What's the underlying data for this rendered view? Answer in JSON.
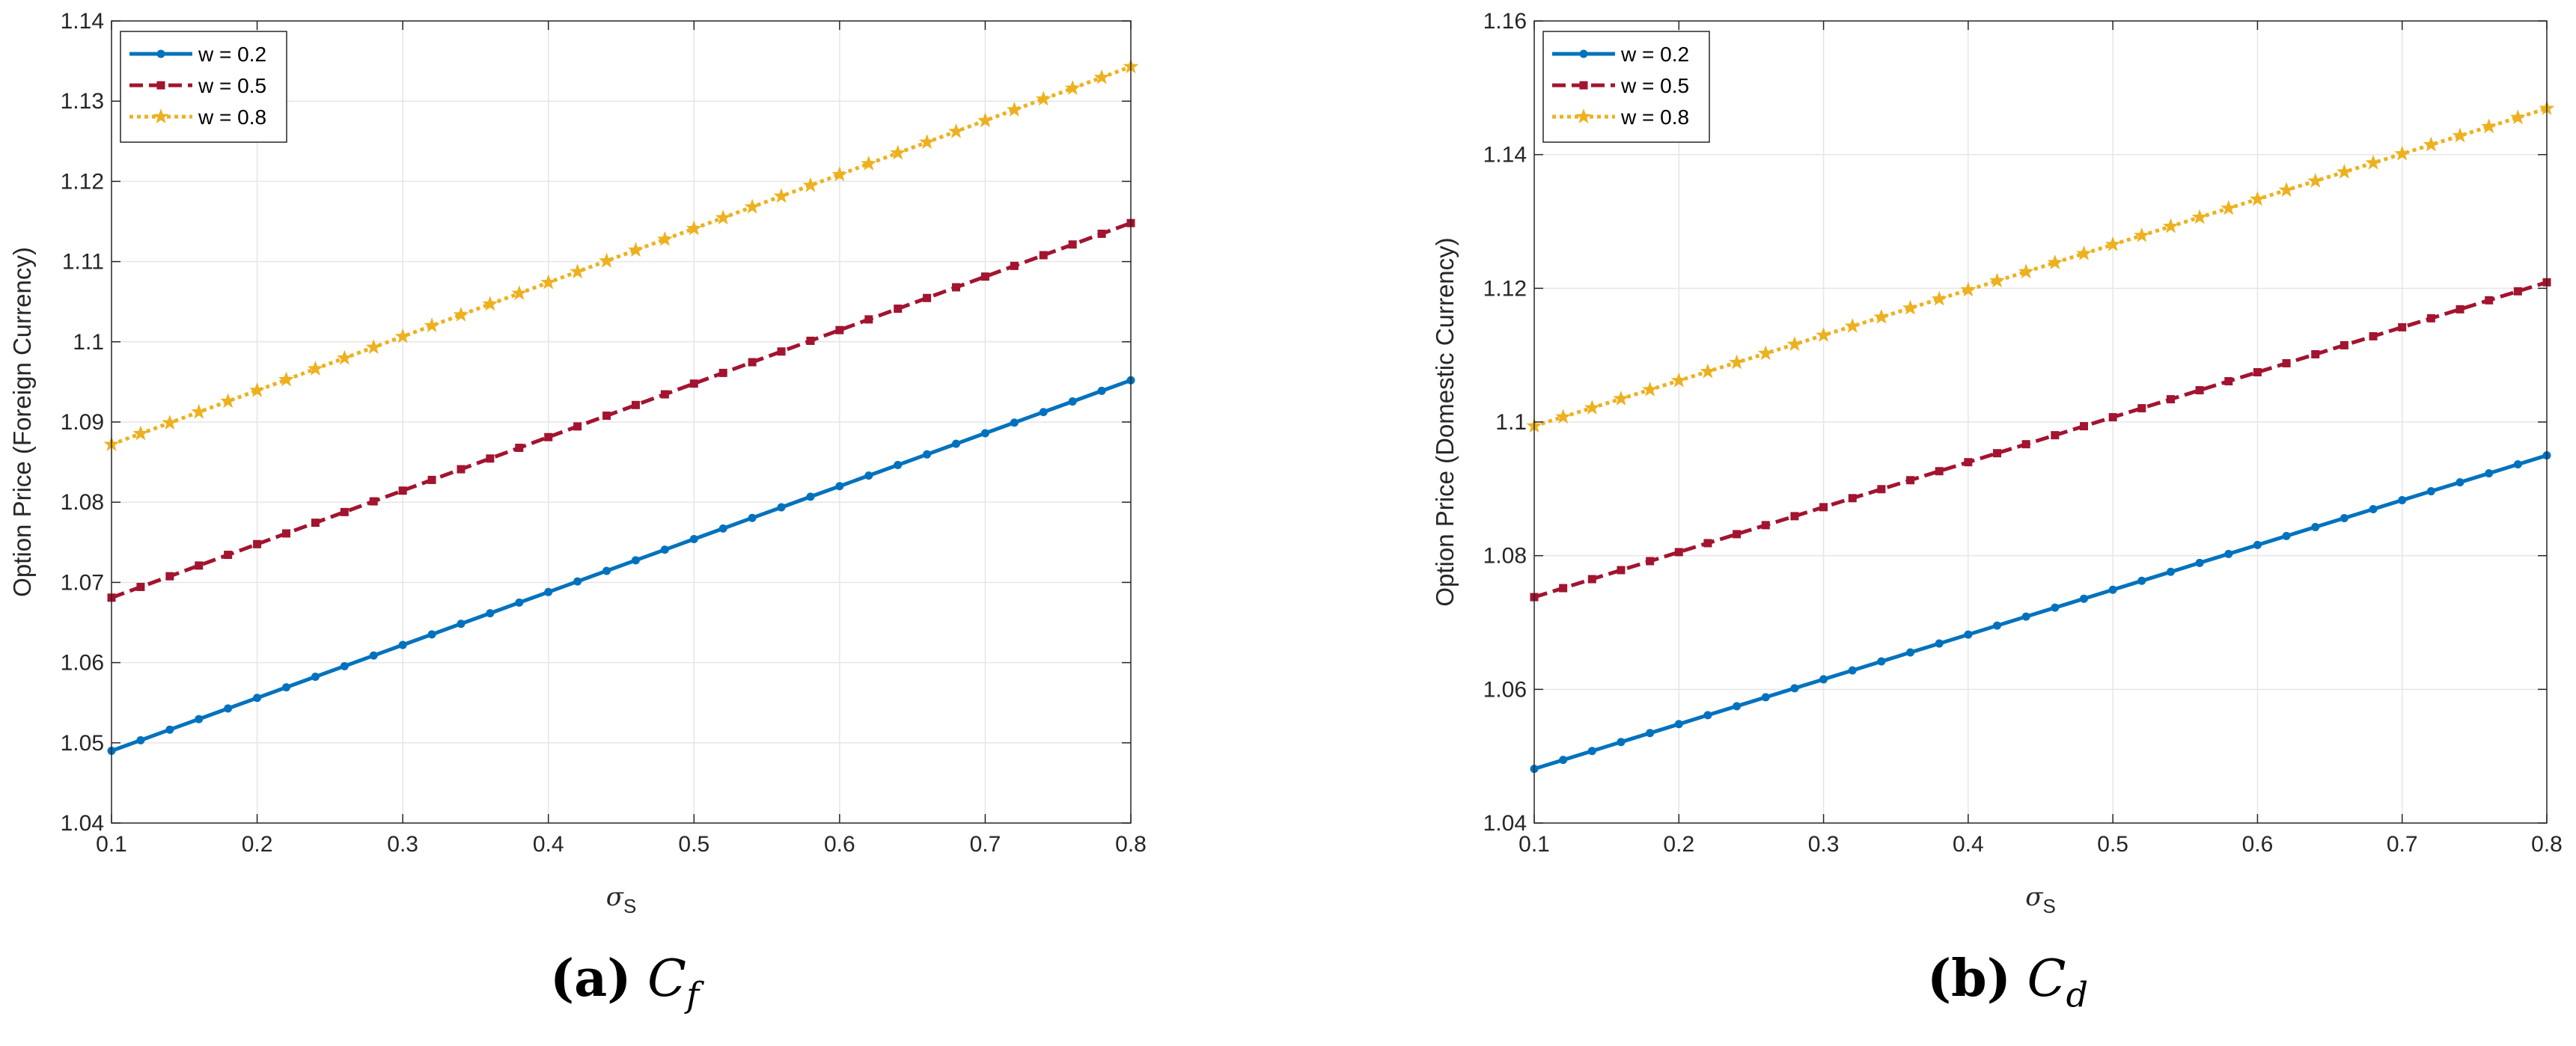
{
  "chart_data": [
    {
      "type": "line",
      "panel_label": "(a)",
      "caption_symbol": "C",
      "caption_subscript": "f",
      "xlabel": "σ",
      "xlabel_sub": "S",
      "ylabel": "Option Price (Foreign Currency)",
      "xlim": [
        0.1,
        0.8
      ],
      "ylim": [
        1.04,
        1.14
      ],
      "xticks": [
        0.1,
        0.2,
        0.3,
        0.4,
        0.5,
        0.6,
        0.7,
        0.8
      ],
      "yticks": [
        1.04,
        1.05,
        1.06,
        1.07,
        1.08,
        1.09,
        1.1,
        1.11,
        1.12,
        1.13,
        1.14
      ],
      "ytick_labels": [
        "1.04",
        "1.05",
        "1.06",
        "1.07",
        "1.08",
        "1.09",
        "1.1",
        "1.11",
        "1.12",
        "1.13",
        "1.14"
      ],
      "xtick_labels": [
        "0.1",
        "0.2",
        "0.3",
        "0.4",
        "0.5",
        "0.6",
        "0.7",
        "0.8"
      ],
      "grid": true,
      "legend_position": "top-left",
      "x_start": 0.1,
      "x_step": 0.02,
      "n_points": 36,
      "series": [
        {
          "name": "w = 0.2",
          "color": "#0072bd",
          "style": "solid",
          "marker": "circle",
          "start": 1.049,
          "end": 1.0952
        },
        {
          "name": "w = 0.5",
          "color": "#a2142f",
          "style": "dashed",
          "marker": "square",
          "start": 1.0681,
          "end": 1.1148
        },
        {
          "name": "w = 0.8",
          "color": "#edb120",
          "style": "dotted",
          "marker": "star",
          "start": 1.0872,
          "end": 1.1343
        }
      ]
    },
    {
      "type": "line",
      "panel_label": "(b)",
      "caption_symbol": "C",
      "caption_subscript": "d",
      "xlabel": "σ",
      "xlabel_sub": "S",
      "ylabel": "Option Price (Domestic Currency)",
      "xlim": [
        0.1,
        0.8
      ],
      "ylim": [
        1.04,
        1.16
      ],
      "xticks": [
        0.1,
        0.2,
        0.3,
        0.4,
        0.5,
        0.6,
        0.7,
        0.8
      ],
      "yticks": [
        1.04,
        1.06,
        1.08,
        1.1,
        1.12,
        1.14,
        1.16
      ],
      "ytick_labels": [
        "1.04",
        "1.06",
        "1.08",
        "1.1",
        "1.12",
        "1.14",
        "1.16"
      ],
      "xtick_labels": [
        "0.1",
        "0.2",
        "0.3",
        "0.4",
        "0.5",
        "0.6",
        "0.7",
        "0.8"
      ],
      "grid": true,
      "legend_position": "top-left",
      "x_start": 0.1,
      "x_step": 0.02,
      "n_points": 36,
      "series": [
        {
          "name": "w = 0.2",
          "color": "#0072bd",
          "style": "solid",
          "marker": "circle",
          "start": 1.0481,
          "end": 1.095
        },
        {
          "name": "w = 0.5",
          "color": "#a2142f",
          "style": "dashed",
          "marker": "square",
          "start": 1.0738,
          "end": 1.1209
        },
        {
          "name": "w = 0.8",
          "color": "#edb120",
          "style": "dotted",
          "marker": "star",
          "start": 1.0994,
          "end": 1.1469
        }
      ]
    }
  ]
}
